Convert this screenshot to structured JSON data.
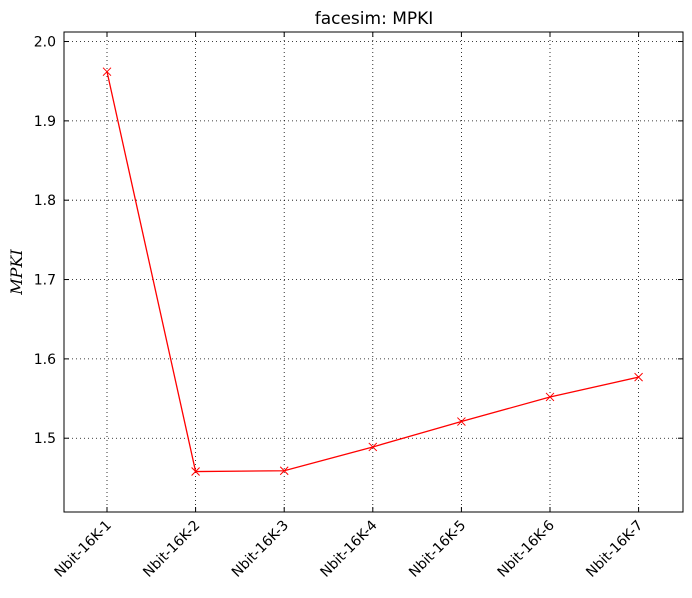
{
  "chart_data": {
    "type": "line",
    "title": "facesim: MPKI",
    "xlabel": "",
    "ylabel": "MPKI",
    "categories": [
      "Nbit-16K-1",
      "Nbit-16K-2",
      "Nbit-16K-3",
      "Nbit-16K-4",
      "Nbit-16K-5",
      "Nbit-16K-6",
      "Nbit-16K-7"
    ],
    "series": [
      {
        "values": [
          1.962,
          1.458,
          1.459,
          1.489,
          1.521,
          1.552,
          1.577
        ],
        "color": "#ff0000",
        "marker": "x"
      }
    ],
    "yticks": [
      "1.5",
      "1.6",
      "1.7",
      "1.8",
      "1.9",
      "2.0"
    ],
    "ylim": [
      1.407,
      2.012
    ],
    "grid": true,
    "x_tick_rotation_deg": 45
  }
}
